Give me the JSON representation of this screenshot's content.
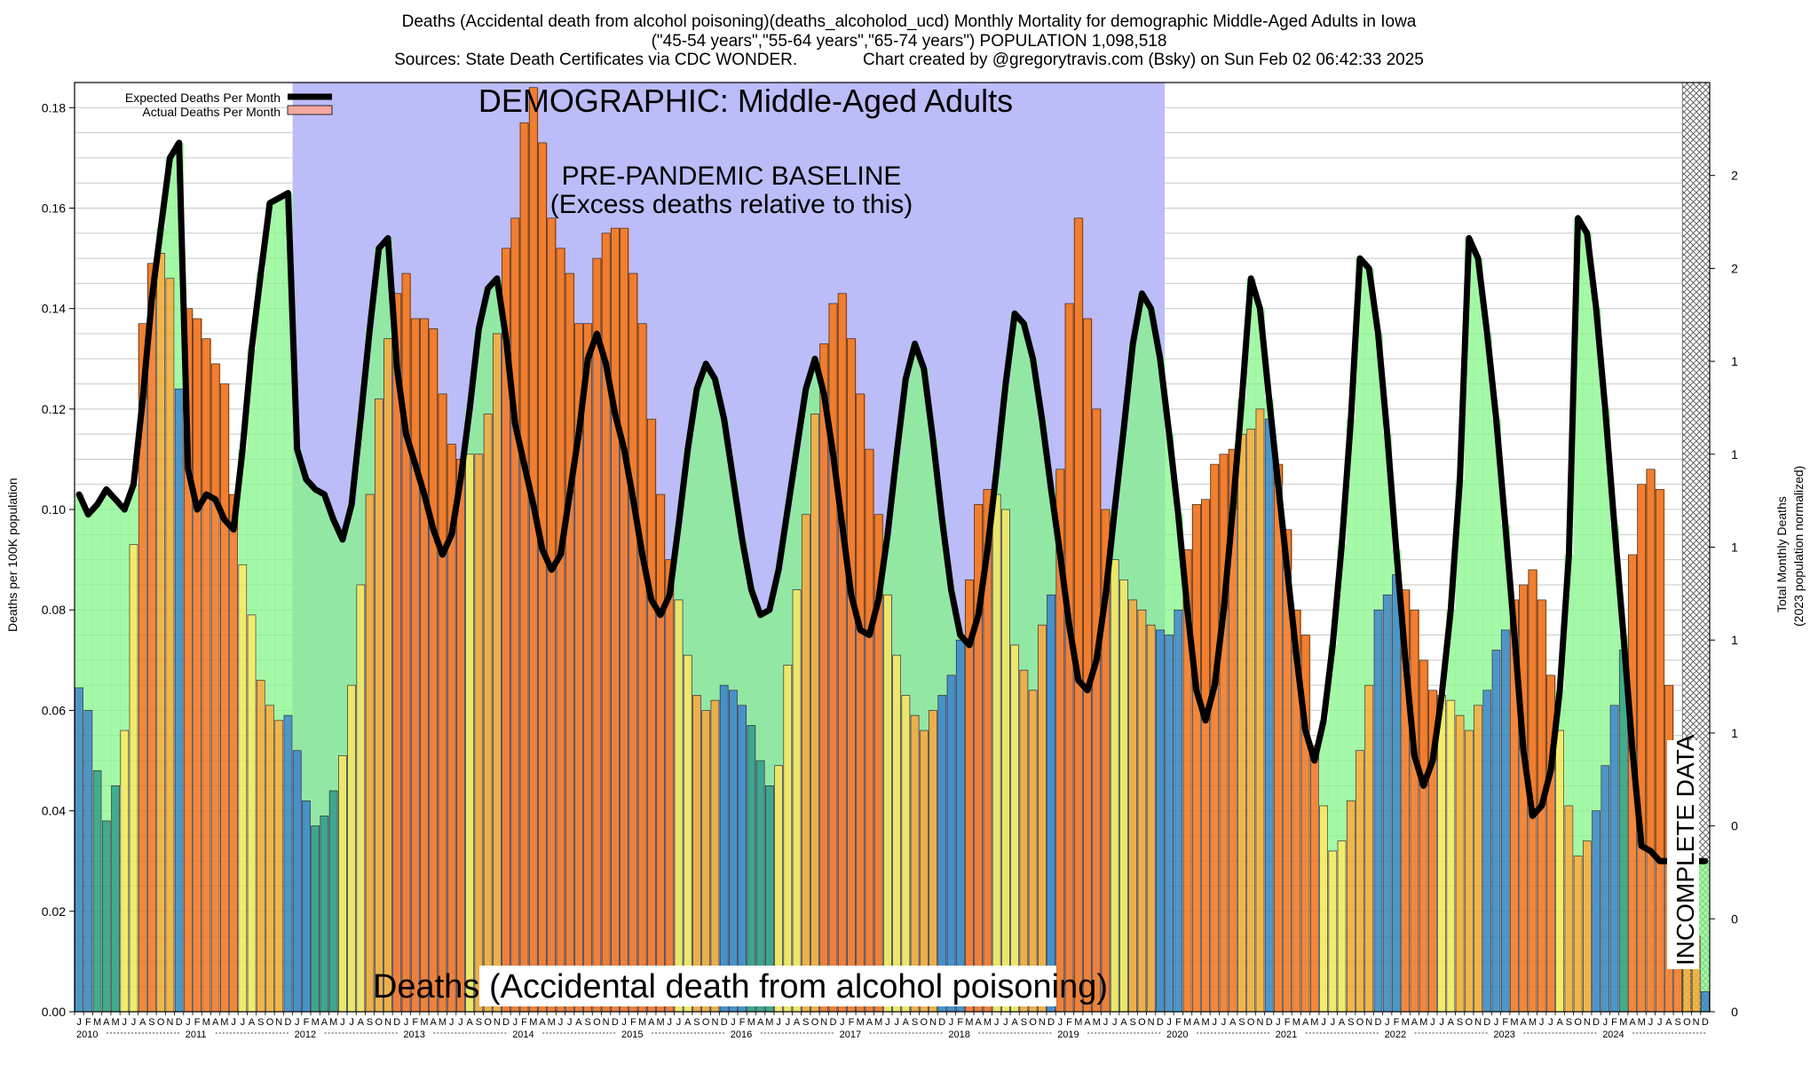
{
  "header": {
    "title_line1": "Deaths (Accidental death from alcohol poisoning)(deaths_alcoholod_ucd) Monthly Mortality for demographic Middle-Aged Adults in Iowa",
    "title_line2": "(\"45-54 years\",\"55-64 years\",\"65-74 years\") POPULATION 1,098,518",
    "title_line3": "Sources: State Death Certificates via CDC WONDER.              Chart created by @gregorytravis.com (Bsky) on Sun Feb 02 06:42:33 2025"
  },
  "chart_data": {
    "type": "bar",
    "title": "Deaths (Accidental death from alcohol poisoning)(deaths_alcoholod_ucd) Monthly Mortality for demographic Middle-Aged Adults in Iowa",
    "ylabel": "Deaths per 100K population",
    "ylabel_right_line1": "Total Monthly Deaths",
    "ylabel_right_line2": "(2023 population normalized)",
    "ylim": [
      0,
      0.185
    ],
    "yticks": [
      "0.00",
      "0.02",
      "0.04",
      "0.06",
      "0.08",
      "0.10",
      "0.12",
      "0.14",
      "0.16",
      "0.18"
    ],
    "right_ticks": [
      "0",
      "0",
      "0",
      "1",
      "1",
      "1",
      "1",
      "1",
      "2",
      "2"
    ],
    "month_letters": [
      "J",
      "F",
      "M",
      "A",
      "M",
      "J",
      "J",
      "A",
      "S",
      "O",
      "N",
      "D"
    ],
    "years": [
      "2010",
      "2011",
      "2012",
      "2013",
      "2014",
      "2015",
      "2016",
      "2017",
      "2018",
      "2019",
      "2020",
      "2021",
      "2022",
      "2023",
      "2024"
    ],
    "legend": [
      "Expected Deaths Per Month",
      "Actual Deaths Per Month"
    ],
    "demographic_label": "DEMOGRAPHIC: Middle-Aged Adults",
    "baseline_label_line1": "PRE-PANDEMIC BASELINE",
    "baseline_label_line2": "(Excess deaths relative to this)",
    "cause_label": "Deaths (Accidental death from alcohol poisoning)",
    "incomplete_label": "INCOMPLETE DATA",
    "baseline_period": [
      "2012-01",
      "2019-12"
    ],
    "incomplete_from": "2024-10",
    "colors": {
      "winter": "#3d8fc4",
      "spring": "#33a684",
      "summer": "#f0eb5e",
      "autumn": "#f0b03c",
      "excess": "#f27d2c",
      "deficit": "#86f58a",
      "baseline": "#bcbcf8",
      "expected_line": "#000000"
    },
    "series": [
      {
        "name": "Actual Deaths Per Month",
        "values": [
          0.0645,
          0.06,
          0.048,
          0.038,
          0.045,
          0.056,
          0.093,
          0.137,
          0.149,
          0.151,
          0.146,
          0.124,
          0.14,
          0.138,
          0.134,
          0.129,
          0.125,
          0.103,
          0.089,
          0.079,
          0.066,
          0.061,
          0.058,
          0.059,
          0.052,
          0.042,
          0.037,
          0.039,
          0.044,
          0.051,
          0.065,
          0.085,
          0.103,
          0.122,
          0.134,
          0.143,
          0.147,
          0.138,
          0.138,
          0.136,
          0.123,
          0.113,
          0.11,
          0.111,
          0.111,
          0.119,
          0.135,
          0.152,
          0.158,
          0.177,
          0.184,
          0.173,
          0.158,
          0.152,
          0.147,
          0.137,
          0.137,
          0.15,
          0.155,
          0.156,
          0.156,
          0.147,
          0.137,
          0.118,
          0.103,
          0.09,
          0.082,
          0.071,
          0.063,
          0.06,
          0.062,
          0.065,
          0.064,
          0.061,
          0.057,
          0.05,
          0.045,
          0.049,
          0.069,
          0.084,
          0.099,
          0.119,
          0.133,
          0.141,
          0.143,
          0.134,
          0.123,
          0.112,
          0.099,
          0.083,
          0.071,
          0.063,
          0.059,
          0.056,
          0.06,
          0.063,
          0.067,
          0.074,
          0.086,
          0.101,
          0.104,
          0.103,
          0.1,
          0.073,
          0.068,
          0.064,
          0.077,
          0.083,
          0.108,
          0.141,
          0.158,
          0.138,
          0.12,
          0.1,
          0.09,
          0.086,
          0.082,
          0.08,
          0.077,
          0.076,
          0.075,
          0.08,
          0.092,
          0.101,
          0.102,
          0.109,
          0.111,
          0.112,
          0.115,
          0.116,
          0.12,
          0.118,
          0.109,
          0.096,
          0.08,
          0.075,
          0.053,
          0.041,
          0.032,
          0.034,
          0.042,
          0.052,
          0.065,
          0.08,
          0.083,
          0.087,
          0.084,
          0.08,
          0.07,
          0.064,
          0.063,
          0.062,
          0.059,
          0.056,
          0.061,
          0.064,
          0.072,
          0.076,
          0.082,
          0.085,
          0.088,
          0.082,
          0.067,
          0.056,
          0.041,
          0.031,
          0.034,
          0.04,
          0.049,
          0.061,
          0.072,
          0.091,
          0.105,
          0.108,
          0.104,
          0.065,
          0.05,
          0.029,
          0.015,
          0.004
        ]
      },
      {
        "name": "Expected Deaths Per Month",
        "values": [
          0.103,
          0.099,
          0.101,
          0.104,
          0.102,
          0.1,
          0.105,
          0.122,
          0.142,
          0.156,
          0.17,
          0.173,
          0.108,
          0.1,
          0.103,
          0.102,
          0.098,
          0.096,
          0.112,
          0.132,
          0.147,
          0.161,
          0.162,
          0.163,
          0.112,
          0.106,
          0.104,
          0.103,
          0.098,
          0.094,
          0.101,
          0.118,
          0.136,
          0.152,
          0.154,
          0.128,
          0.115,
          0.109,
          0.103,
          0.096,
          0.091,
          0.095,
          0.106,
          0.12,
          0.136,
          0.144,
          0.146,
          0.134,
          0.117,
          0.109,
          0.101,
          0.092,
          0.088,
          0.091,
          0.103,
          0.115,
          0.13,
          0.135,
          0.129,
          0.119,
          0.112,
          0.102,
          0.091,
          0.082,
          0.079,
          0.083,
          0.097,
          0.112,
          0.124,
          0.129,
          0.126,
          0.118,
          0.106,
          0.094,
          0.084,
          0.079,
          0.08,
          0.088,
          0.1,
          0.112,
          0.124,
          0.13,
          0.123,
          0.111,
          0.097,
          0.083,
          0.076,
          0.075,
          0.082,
          0.095,
          0.111,
          0.126,
          0.133,
          0.128,
          0.114,
          0.098,
          0.084,
          0.075,
          0.073,
          0.079,
          0.092,
          0.108,
          0.125,
          0.139,
          0.137,
          0.13,
          0.118,
          0.104,
          0.091,
          0.077,
          0.066,
          0.064,
          0.07,
          0.083,
          0.1,
          0.116,
          0.133,
          0.143,
          0.14,
          0.13,
          0.115,
          0.099,
          0.08,
          0.064,
          0.058,
          0.065,
          0.08,
          0.1,
          0.122,
          0.146,
          0.14,
          0.122,
          0.105,
          0.088,
          0.071,
          0.056,
          0.05,
          0.058,
          0.073,
          0.093,
          0.118,
          0.15,
          0.148,
          0.135,
          0.115,
          0.092,
          0.07,
          0.051,
          0.045,
          0.05,
          0.063,
          0.08,
          0.106,
          0.154,
          0.15,
          0.135,
          0.118,
          0.097,
          0.075,
          0.052,
          0.039,
          0.041,
          0.048,
          0.064,
          0.091,
          0.158,
          0.155,
          0.14,
          0.12,
          0.097,
          0.075,
          0.052,
          0.033,
          0.032,
          0.03,
          0.03,
          0.03,
          0.03,
          0.03,
          0.03
        ]
      }
    ]
  }
}
